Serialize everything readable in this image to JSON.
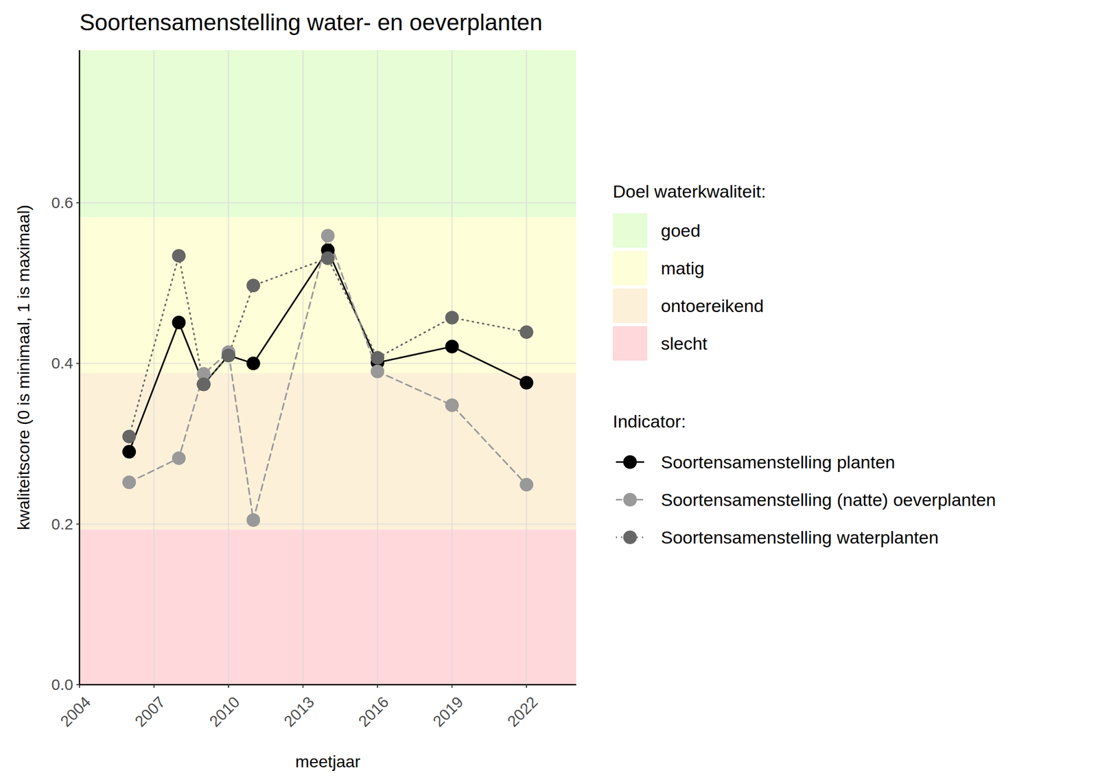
{
  "chart_data": {
    "type": "line",
    "title": "Soortensamenstelling water- en oeverplanten",
    "x_label": "meetjaar",
    "y_label": "kwaliteitscore (0 is minimaal, 1 is maximaal)",
    "x": [
      2006,
      2008,
      2009,
      2010,
      2011,
      2014,
      2016,
      2019,
      2022
    ],
    "xlim": [
      2004,
      2024
    ],
    "xticks": [
      2004,
      2007,
      2010,
      2013,
      2016,
      2019,
      2022
    ],
    "ylim": [
      0,
      0.79
    ],
    "yticks": [
      {
        "value": 0,
        "label": "0.0"
      },
      0.2,
      0.4,
      0.6
    ],
    "grid": true,
    "legend_titles": [
      "Doel waterkwaliteit:",
      "Indicator:"
    ],
    "bands": [
      {
        "name": "goed",
        "color": "#e6fdd6",
        "from": 0.582,
        "to": 0.79
      },
      {
        "name": "matig",
        "color": "#fefed8",
        "from": 0.388,
        "to": 0.582
      },
      {
        "name": "ontoereikend",
        "color": "#fdf0d9",
        "from": 0.193,
        "to": 0.388
      },
      {
        "name": "slecht",
        "color": "#fed8db",
        "from": 0,
        "to": 0.193
      }
    ],
    "series": [
      {
        "name": "Soortensamenstelling planten",
        "color": "#000000",
        "line_style": "solid",
        "marker": "circle",
        "values": [
          0.29,
          0.451,
          0.374,
          0.41,
          0.4,
          0.541,
          0.401,
          0.421,
          0.376
        ]
      },
      {
        "name": "Soortensamenstelling (natte) oeverplanten",
        "color": "#999999",
        "line_style": "dashed",
        "marker": "circle",
        "values": [
          0.252,
          0.282,
          0.387,
          0.414,
          0.205,
          0.559,
          0.39,
          0.348,
          0.249
        ]
      },
      {
        "name": "Soortensamenstelling waterplanten",
        "color": "#666666",
        "line_style": "dotted",
        "marker": "circle",
        "values": [
          0.309,
          0.534,
          0.374,
          0.41,
          0.497,
          0.531,
          0.407,
          0.457,
          0.439
        ]
      }
    ]
  }
}
